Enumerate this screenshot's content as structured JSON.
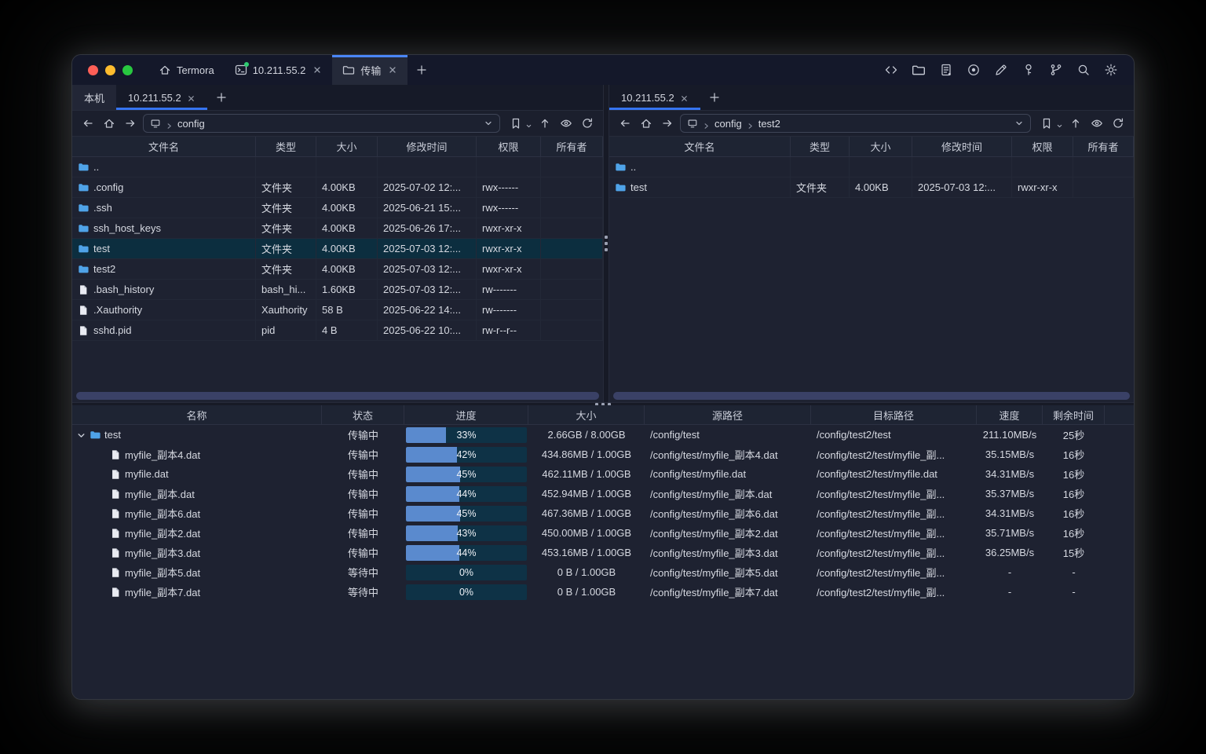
{
  "window": {
    "title_tabs": [
      {
        "label": "Termora",
        "icon": "home",
        "active": false,
        "closable": false,
        "status_dot": false
      },
      {
        "label": "10.211.55.2",
        "icon": "terminal",
        "active": false,
        "closable": true,
        "status_dot": true
      },
      {
        "label": "传输",
        "icon": "folder",
        "active": true,
        "closable": true,
        "status_dot": false
      }
    ],
    "new_tab_label": "+",
    "toolbar_icons": [
      "code",
      "folder",
      "log",
      "record",
      "edit",
      "key",
      "branch",
      "search",
      "settings"
    ],
    "traffic_lights": [
      "close",
      "minimize",
      "maximize"
    ],
    "accent_color": "#3674f0"
  },
  "file_columns": [
    "文件名",
    "类型",
    "大小",
    "修改时间",
    "权限",
    "所有者"
  ],
  "left_panel": {
    "tabs": [
      {
        "label": "本机",
        "active": false,
        "closable": false
      },
      {
        "label": "10.211.55.2",
        "active": true,
        "closable": true
      }
    ],
    "new_tab_label": "+",
    "breadcrumb": [
      "config"
    ],
    "rows": [
      {
        "name": "..",
        "icon": "folder",
        "type": "",
        "size": "",
        "mtime": "",
        "perm": "",
        "owner": "",
        "selected": false
      },
      {
        "name": ".config",
        "icon": "folder",
        "type": "文件夹",
        "size": "4.00KB",
        "mtime": "2025-07-02 12:...",
        "perm": "rwx------",
        "owner": "",
        "selected": false
      },
      {
        "name": ".ssh",
        "icon": "folder",
        "type": "文件夹",
        "size": "4.00KB",
        "mtime": "2025-06-21 15:...",
        "perm": "rwx------",
        "owner": "",
        "selected": false
      },
      {
        "name": "ssh_host_keys",
        "icon": "folder",
        "type": "文件夹",
        "size": "4.00KB",
        "mtime": "2025-06-26 17:...",
        "perm": "rwxr-xr-x",
        "owner": "",
        "selected": false
      },
      {
        "name": "test",
        "icon": "folder",
        "type": "文件夹",
        "size": "4.00KB",
        "mtime": "2025-07-03 12:...",
        "perm": "rwxr-xr-x",
        "owner": "",
        "selected": true
      },
      {
        "name": "test2",
        "icon": "folder",
        "type": "文件夹",
        "size": "4.00KB",
        "mtime": "2025-07-03 12:...",
        "perm": "rwxr-xr-x",
        "owner": "",
        "selected": false
      },
      {
        "name": ".bash_history",
        "icon": "file",
        "type": "bash_hi...",
        "size": "1.60KB",
        "mtime": "2025-07-03 12:...",
        "perm": "rw-------",
        "owner": "",
        "selected": false
      },
      {
        "name": ".Xauthority",
        "icon": "file",
        "type": "Xauthority",
        "size": "58 B",
        "mtime": "2025-06-22 14:...",
        "perm": "rw-------",
        "owner": "",
        "selected": false
      },
      {
        "name": "sshd.pid",
        "icon": "file",
        "type": "pid",
        "size": "4 B",
        "mtime": "2025-06-22 10:...",
        "perm": "rw-r--r--",
        "owner": "",
        "selected": false
      }
    ]
  },
  "right_panel": {
    "tabs": [
      {
        "label": "10.211.55.2",
        "active": true,
        "closable": true
      }
    ],
    "new_tab_label": "+",
    "breadcrumb": [
      "config",
      "test2"
    ],
    "rows": [
      {
        "name": "..",
        "icon": "folder",
        "type": "",
        "size": "",
        "mtime": "",
        "perm": "",
        "owner": "",
        "selected": false
      },
      {
        "name": "test",
        "icon": "folder",
        "type": "文件夹",
        "size": "4.00KB",
        "mtime": "2025-07-03 12:...",
        "perm": "rwxr-xr-x",
        "owner": "",
        "selected": false
      }
    ]
  },
  "transfer": {
    "columns": [
      "名称",
      "状态",
      "进度",
      "大小",
      "源路径",
      "目标路径",
      "速度",
      "剩余时间"
    ],
    "rows": [
      {
        "name": "test",
        "icon": "folder",
        "indent": 0,
        "expanded": true,
        "status": "传输中",
        "progress": 33,
        "progress_label": "33%",
        "size": "2.66GB / 8.00GB",
        "source": "/config/test",
        "target": "/config/test2/test",
        "speed": "211.10MB/s",
        "eta": "25秒"
      },
      {
        "name": "myfile_副本4.dat",
        "icon": "file",
        "indent": 1,
        "expanded": false,
        "status": "传输中",
        "progress": 42,
        "progress_label": "42%",
        "size": "434.86MB / 1.00GB",
        "source": "/config/test/myfile_副本4.dat",
        "target": "/config/test2/test/myfile_副...",
        "speed": "35.15MB/s",
        "eta": "16秒"
      },
      {
        "name": "myfile.dat",
        "icon": "file",
        "indent": 1,
        "expanded": false,
        "status": "传输中",
        "progress": 45,
        "progress_label": "45%",
        "size": "462.11MB / 1.00GB",
        "source": "/config/test/myfile.dat",
        "target": "/config/test2/test/myfile.dat",
        "speed": "34.31MB/s",
        "eta": "16秒"
      },
      {
        "name": "myfile_副本.dat",
        "icon": "file",
        "indent": 1,
        "expanded": false,
        "status": "传输中",
        "progress": 44,
        "progress_label": "44%",
        "size": "452.94MB / 1.00GB",
        "source": "/config/test/myfile_副本.dat",
        "target": "/config/test2/test/myfile_副...",
        "speed": "35.37MB/s",
        "eta": "16秒"
      },
      {
        "name": "myfile_副本6.dat",
        "icon": "file",
        "indent": 1,
        "expanded": false,
        "status": "传输中",
        "progress": 45,
        "progress_label": "45%",
        "size": "467.36MB / 1.00GB",
        "source": "/config/test/myfile_副本6.dat",
        "target": "/config/test2/test/myfile_副...",
        "speed": "34.31MB/s",
        "eta": "16秒"
      },
      {
        "name": "myfile_副本2.dat",
        "icon": "file",
        "indent": 1,
        "expanded": false,
        "status": "传输中",
        "progress": 43,
        "progress_label": "43%",
        "size": "450.00MB / 1.00GB",
        "source": "/config/test/myfile_副本2.dat",
        "target": "/config/test2/test/myfile_副...",
        "speed": "35.71MB/s",
        "eta": "16秒"
      },
      {
        "name": "myfile_副本3.dat",
        "icon": "file",
        "indent": 1,
        "expanded": false,
        "status": "传输中",
        "progress": 44,
        "progress_label": "44%",
        "size": "453.16MB / 1.00GB",
        "source": "/config/test/myfile_副本3.dat",
        "target": "/config/test2/test/myfile_副...",
        "speed": "36.25MB/s",
        "eta": "15秒"
      },
      {
        "name": "myfile_副本5.dat",
        "icon": "file",
        "indent": 1,
        "expanded": false,
        "status": "等待中",
        "progress": 0,
        "progress_label": "0%",
        "size": "0 B / 1.00GB",
        "source": "/config/test/myfile_副本5.dat",
        "target": "/config/test2/test/myfile_副...",
        "speed": "-",
        "eta": "-"
      },
      {
        "name": "myfile_副本7.dat",
        "icon": "file",
        "indent": 1,
        "expanded": false,
        "status": "等待中",
        "progress": 0,
        "progress_label": "0%",
        "size": "0 B / 1.00GB",
        "source": "/config/test/myfile_副本7.dat",
        "target": "/config/test2/test/myfile_副...",
        "speed": "-",
        "eta": "-"
      }
    ]
  },
  "colors": {
    "accent": "#3674f0",
    "selection_row": "#0c2e3f",
    "progress_fill": "#5a8ace",
    "progress_track": "#0e3246",
    "folder_icon": "#4fa3e8",
    "traffic_red": "#ff5f57",
    "traffic_yellow": "#febc2e",
    "traffic_green": "#28c840",
    "status_dot_green": "#2ecc71"
  }
}
